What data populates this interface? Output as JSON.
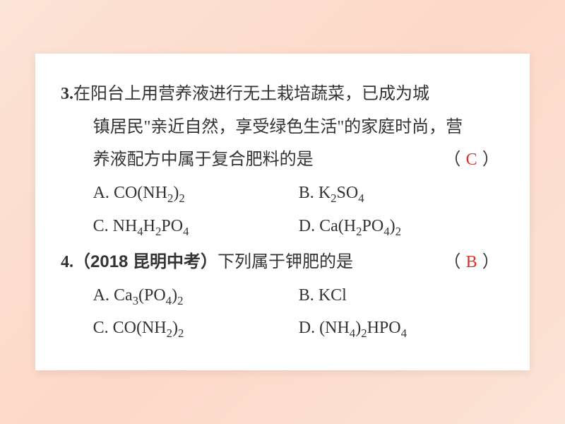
{
  "card": {
    "background_color": "#ffffff",
    "page_background_gradient": [
      "#fce4d6",
      "#fdd8c8",
      "#fce4d6"
    ],
    "text_color": "#333333",
    "answer_color": "#d4342f",
    "font_family": "SimSun",
    "font_size_pt": 18,
    "line_height": 1.95
  },
  "q3": {
    "number": "3.",
    "stem_line1": "在阳台上用营养液进行无土栽培蔬菜，已成为城",
    "stem_line2": "镇居民\"亲近自然，享受绿色生活\"的家庭时尚，营",
    "stem_line3": "养液配方中属于复合肥料的是",
    "paren_open": "（",
    "answer": "C",
    "paren_close": "）",
    "options": {
      "A": {
        "label": "A. ",
        "formula_html": "CO(NH<sub>2</sub>)<sub>2</sub>"
      },
      "B": {
        "label": "B. ",
        "formula_html": "K<sub>2</sub>SO<sub>4</sub>"
      },
      "C": {
        "label": "C. ",
        "formula_html": "NH<sub>4</sub>H<sub>2</sub>PO<sub>4</sub>"
      },
      "D": {
        "label": "D. ",
        "formula_html": "Ca(H<sub>2</sub>PO<sub>4</sub>)<sub>2</sub>"
      }
    }
  },
  "q4": {
    "number": "4.",
    "source": "（2018 昆明中考）",
    "stem": "下列属于钾肥的是",
    "paren_open": "（",
    "answer": "B",
    "paren_close": "）",
    "options": {
      "A": {
        "label": "A. ",
        "formula_html": "Ca<sub>3</sub>(PO<sub>4</sub>)<sub>2</sub>"
      },
      "B": {
        "label": "B. ",
        "formula_html": "KCl"
      },
      "C": {
        "label": "C. ",
        "formula_html": "CO(NH<sub>2</sub>)<sub>2</sub>"
      },
      "D": {
        "label": "D. ",
        "formula_html": "(NH<sub>4</sub>)<sub>2</sub>HPO<sub>4</sub>"
      }
    }
  }
}
